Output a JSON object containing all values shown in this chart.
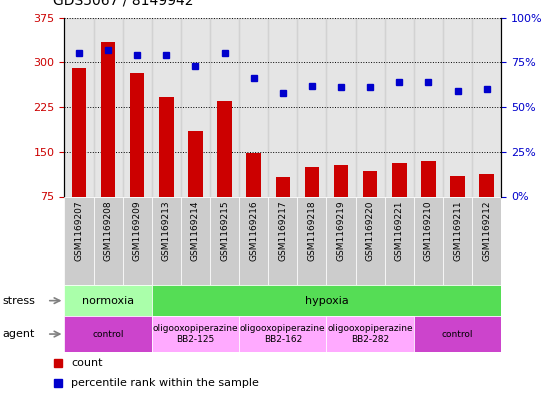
{
  "title": "GDS5067 / 8149942",
  "samples": [
    "GSM1169207",
    "GSM1169208",
    "GSM1169209",
    "GSM1169213",
    "GSM1169214",
    "GSM1169215",
    "GSM1169216",
    "GSM1169217",
    "GSM1169218",
    "GSM1169219",
    "GSM1169220",
    "GSM1169221",
    "GSM1169210",
    "GSM1169211",
    "GSM1169212"
  ],
  "counts": [
    290,
    335,
    282,
    242,
    185,
    235,
    148,
    108,
    125,
    128,
    118,
    132,
    135,
    110,
    113
  ],
  "percentiles": [
    80,
    82,
    79,
    79,
    73,
    80,
    66,
    58,
    62,
    61,
    61,
    64,
    64,
    59,
    60
  ],
  "ylim_left": [
    75,
    375
  ],
  "ylim_right": [
    0,
    100
  ],
  "yticks_left": [
    75,
    150,
    225,
    300,
    375
  ],
  "yticks_right": [
    0,
    25,
    50,
    75,
    100
  ],
  "bar_color": "#cc0000",
  "dot_color": "#0000cc",
  "stress_groups": [
    {
      "label": "normoxia",
      "start": 0,
      "end": 3,
      "color": "#aaffaa"
    },
    {
      "label": "hypoxia",
      "start": 3,
      "end": 15,
      "color": "#55dd55"
    }
  ],
  "agent_groups": [
    {
      "label": "control",
      "start": 0,
      "end": 3,
      "color": "#cc44cc"
    },
    {
      "label": "oligooxopiperazine\nBB2-125",
      "start": 3,
      "end": 6,
      "color": "#ffaaff"
    },
    {
      "label": "oligooxopiperazine\nBB2-162",
      "start": 6,
      "end": 9,
      "color": "#ffaaff"
    },
    {
      "label": "oligooxopiperazine\nBB2-282",
      "start": 9,
      "end": 12,
      "color": "#ffaaff"
    },
    {
      "label": "control",
      "start": 12,
      "end": 15,
      "color": "#cc44cc"
    }
  ],
  "tick_label_color_left": "#cc0000",
  "tick_label_color_right": "#0000cc",
  "col_colors_light": "#cccccc",
  "col_colors_dark": "#bbbbbb",
  "legend_items": [
    {
      "color": "#cc0000",
      "label": "count"
    },
    {
      "color": "#0000cc",
      "label": "percentile rank within the sample"
    }
  ]
}
